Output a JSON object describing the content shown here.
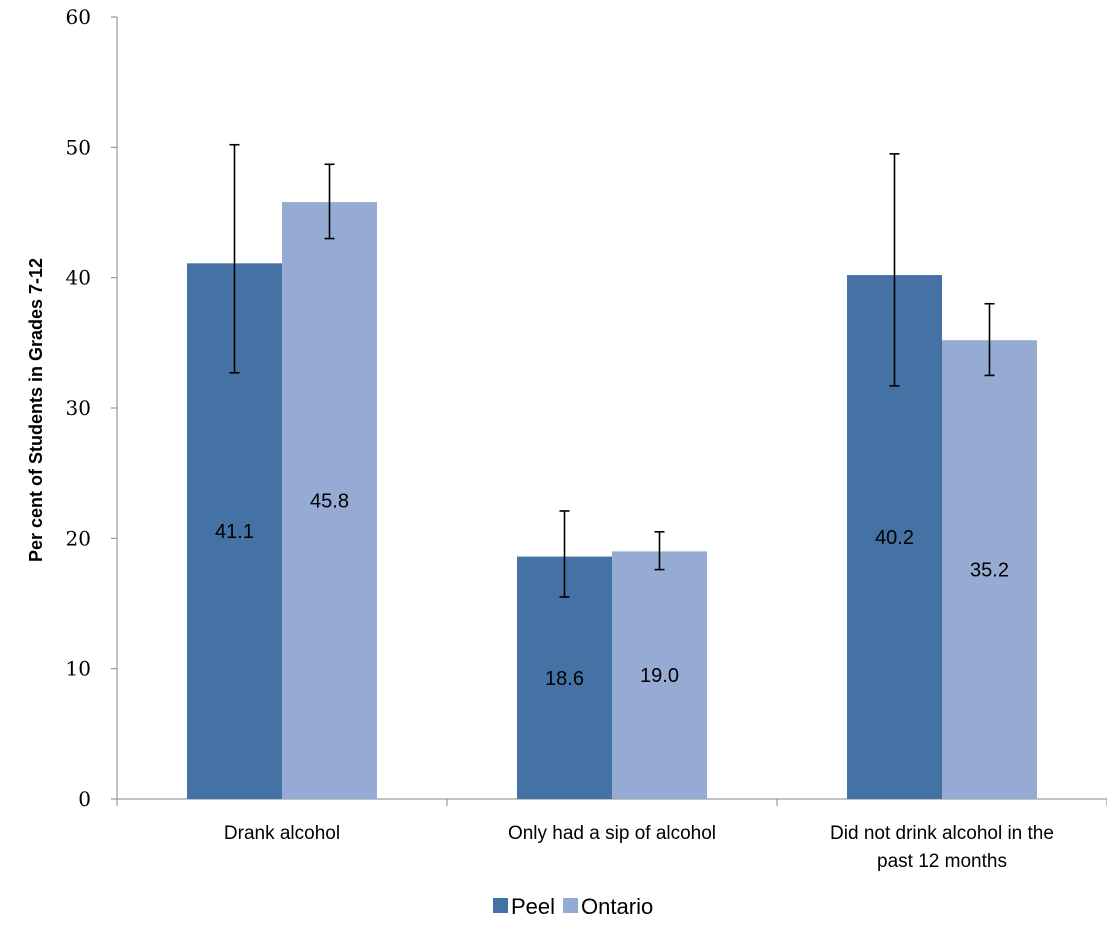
{
  "chart_data": {
    "type": "bar",
    "ylabel": "Per cent of Students in Grades 7-12",
    "ylim": [
      0,
      60
    ],
    "yticks": [
      0,
      10,
      20,
      30,
      40,
      50,
      60
    ],
    "grid": false,
    "legend_position": "bottom",
    "categories": [
      [
        "Drank alcohol"
      ],
      [
        "Only had a sip of alcohol"
      ],
      [
        "Did not drink alcohol in the",
        "past 12 months"
      ]
    ],
    "series": [
      {
        "name": "Peel",
        "color": "#4472a4",
        "values": [
          41.1,
          18.6,
          40.2
        ],
        "labels": [
          "41.1",
          "18.6",
          "40.2"
        ],
        "error_low": [
          32.7,
          15.5,
          31.7
        ],
        "error_high": [
          50.2,
          22.1,
          49.5
        ]
      },
      {
        "name": "Ontario",
        "color": "#95abd3",
        "values": [
          45.8,
          19.0,
          35.2
        ],
        "labels": [
          "45.8",
          "19.0",
          "35.2"
        ],
        "error_low": [
          43.0,
          17.6,
          32.5
        ],
        "error_high": [
          48.7,
          20.5,
          38.0
        ]
      }
    ]
  }
}
